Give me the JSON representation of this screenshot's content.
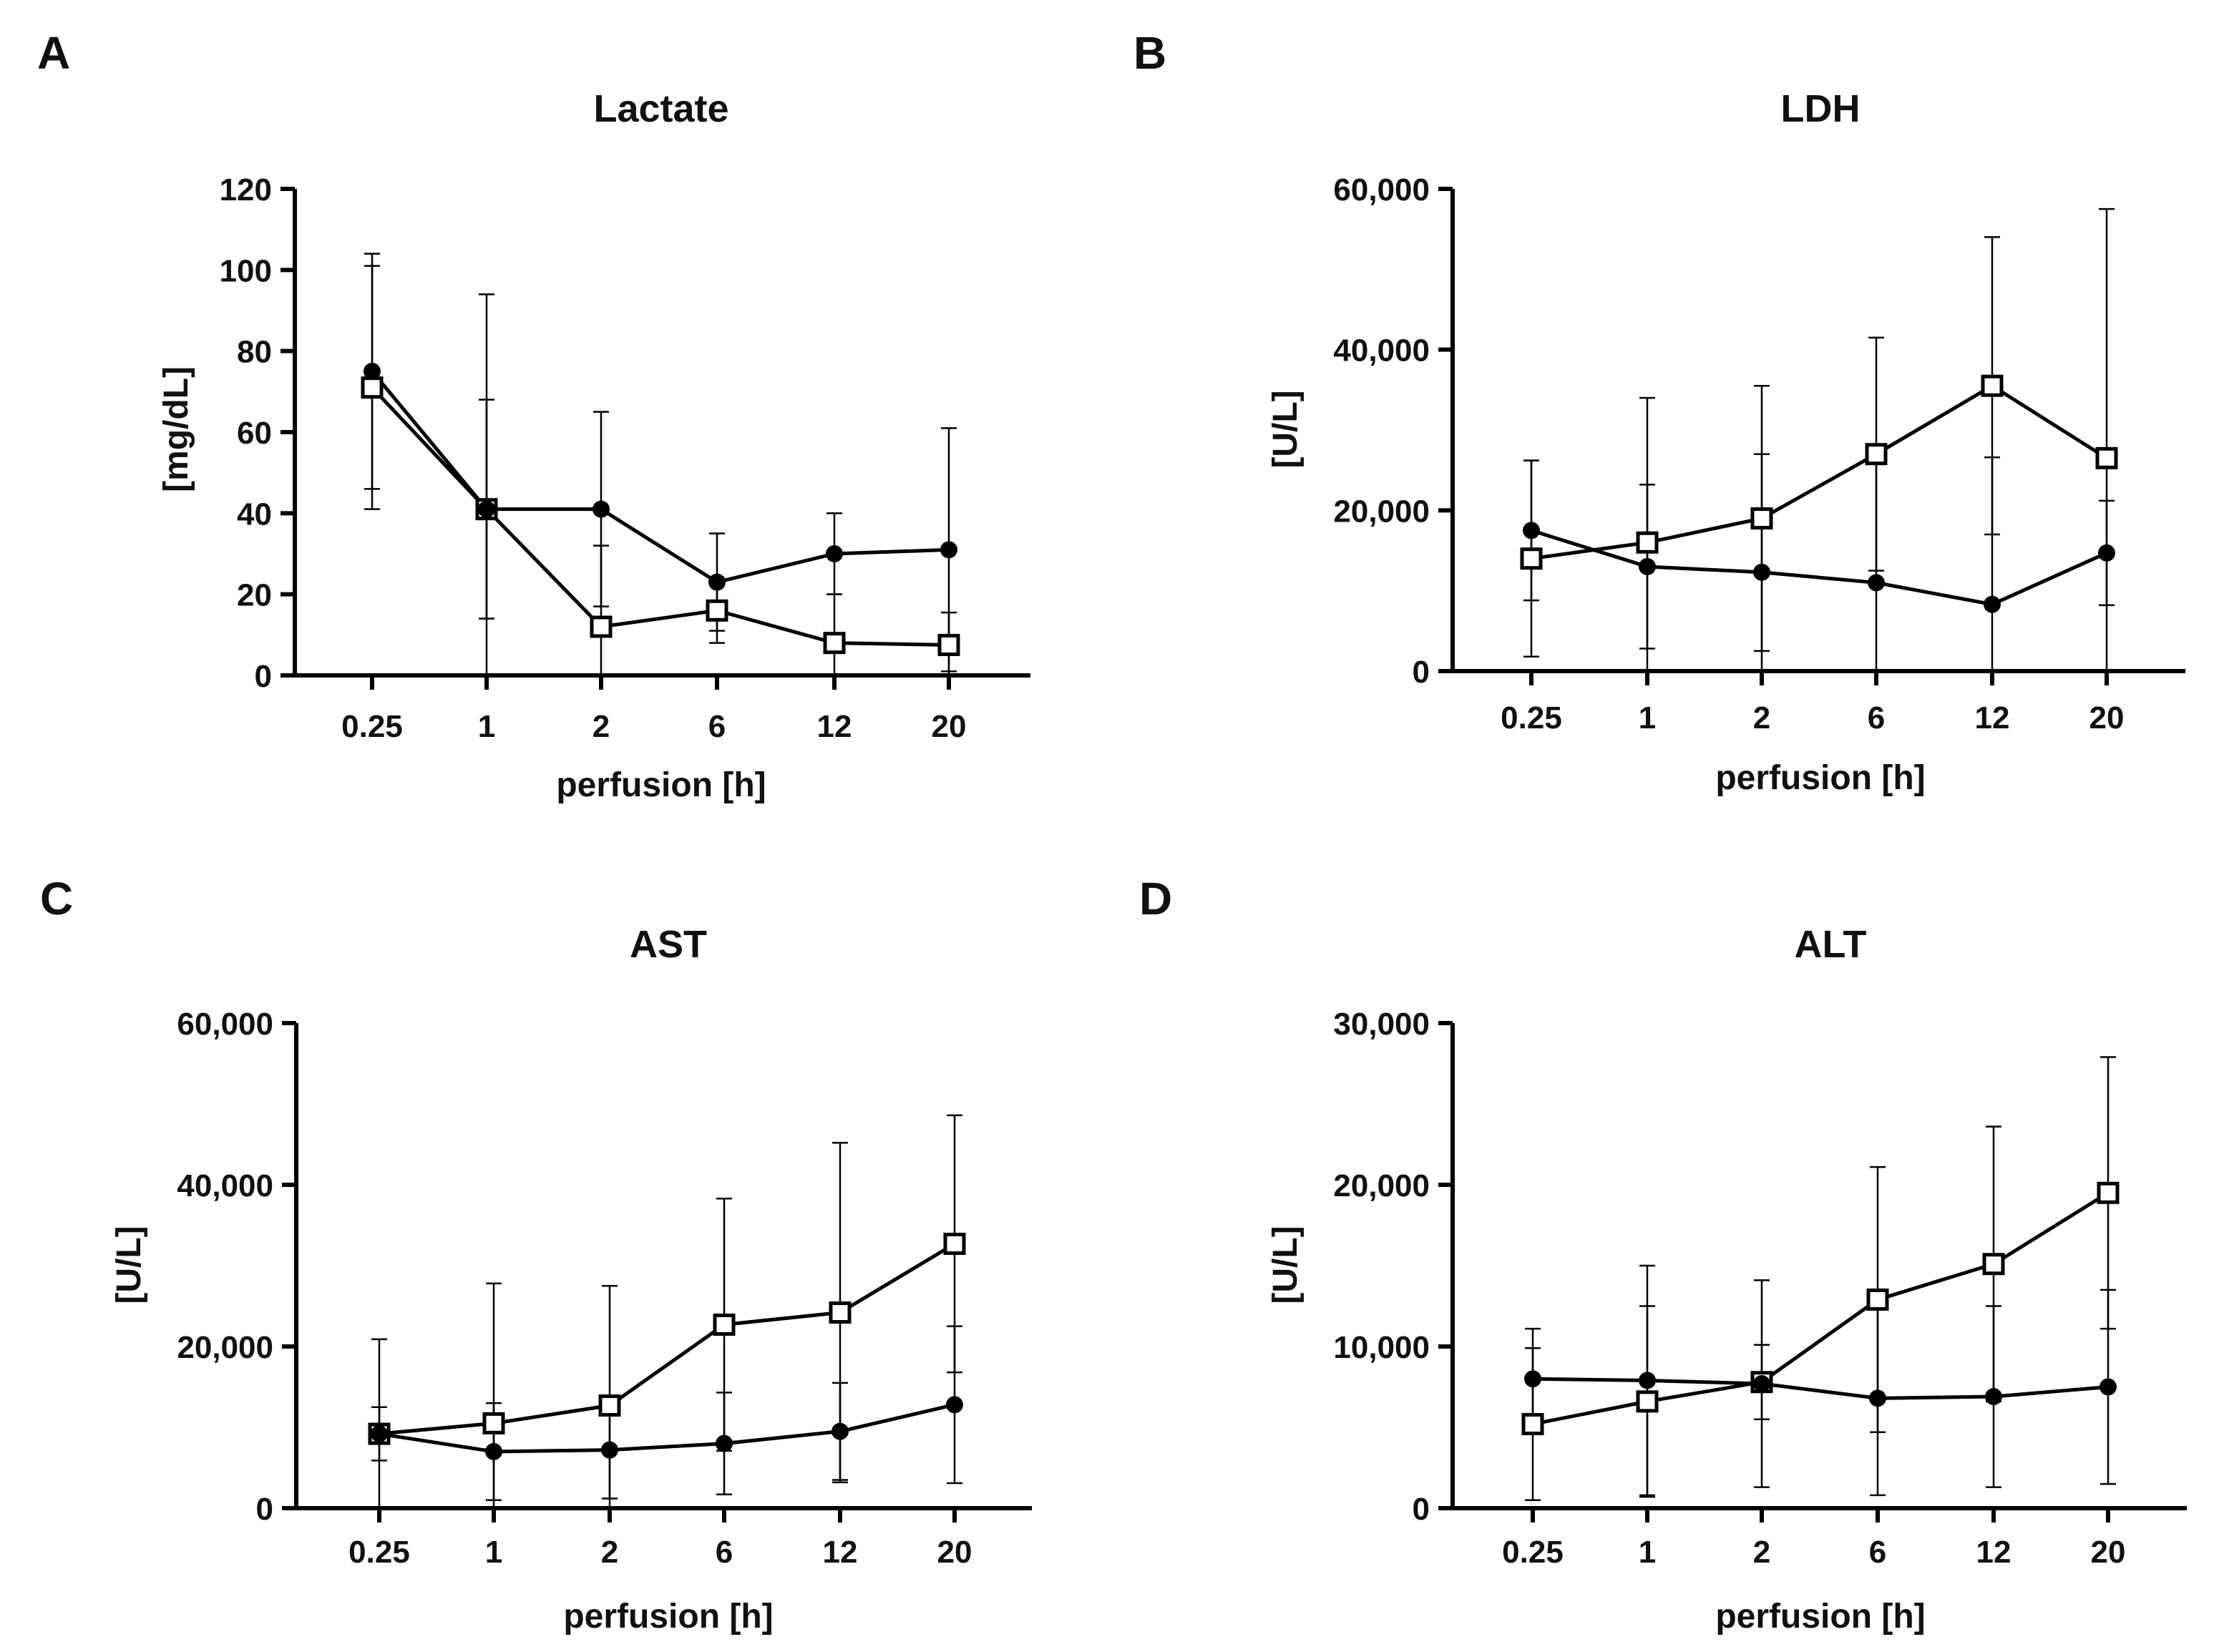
{
  "chart_data": [
    {
      "panel_letter": "A",
      "type": "line",
      "title": "Lactate",
      "xlabel": "perfusion [h]",
      "ylabel": "[mg/dL]",
      "categories": [
        "0.25",
        "1",
        "2",
        "6",
        "12",
        "20"
      ],
      "ylim": [
        0,
        120
      ],
      "yticks": [
        0,
        20,
        40,
        60,
        80,
        100,
        120
      ],
      "ytick_labels": [
        "0",
        "20",
        "40",
        "60",
        "80",
        "100",
        "120"
      ],
      "grid": false,
      "legend": "none",
      "series": [
        {
          "marker": "filled-circle",
          "values": [
            75,
            41,
            41,
            23,
            30,
            31
          ],
          "errors": [
            29,
            53,
            24,
            12,
            10,
            30
          ]
        },
        {
          "marker": "open-square",
          "values": [
            71,
            41,
            12,
            16,
            8,
            7.5
          ],
          "errors": [
            30,
            27,
            20,
            8,
            12,
            8
          ]
        }
      ]
    },
    {
      "panel_letter": "B",
      "type": "line",
      "title": "LDH",
      "xlabel": "perfusion [h]",
      "ylabel": "[U/L]",
      "categories": [
        "0.25",
        "1",
        "2",
        "6",
        "12",
        "20"
      ],
      "ylim": [
        0,
        60000
      ],
      "yticks": [
        0,
        20000,
        40000,
        60000
      ],
      "ytick_labels": [
        "0",
        "20,000",
        "40,000",
        "60,000"
      ],
      "grid": false,
      "legend": "none",
      "series": [
        {
          "marker": "filled-circle",
          "values": [
            17500,
            13000,
            12300,
            11000,
            8300,
            14700
          ],
          "errors": [
            8700,
            10200,
            14700,
            15400,
            18300,
            6500
          ]
        },
        {
          "marker": "open-square",
          "values": [
            14000,
            16000,
            19000,
            27000,
            35500,
            26500
          ],
          "errors": [
            12200,
            18000,
            16500,
            14500,
            18500,
            31000
          ]
        }
      ]
    },
    {
      "panel_letter": "C",
      "type": "line",
      "title": "AST",
      "xlabel": "perfusion [h]",
      "ylabel": "[U/L]",
      "categories": [
        "0.25",
        "1",
        "2",
        "6",
        "12",
        "20"
      ],
      "ylim": [
        0,
        60000
      ],
      "yticks": [
        0,
        20000,
        40000,
        60000
      ],
      "ytick_labels": [
        "0",
        "20,000",
        "40,000",
        "60,000"
      ],
      "grid": false,
      "legend": "none",
      "series": [
        {
          "marker": "filled-circle",
          "values": [
            9200,
            7000,
            7200,
            8000,
            9500,
            12800
          ],
          "errors": [
            3300,
            6000,
            6000,
            6300,
            6000,
            9700
          ]
        },
        {
          "marker": "open-square",
          "values": [
            9200,
            10500,
            12700,
            22700,
            24200,
            32700
          ],
          "errors": [
            11700,
            17300,
            14800,
            15600,
            21000,
            15900
          ]
        }
      ]
    },
    {
      "panel_letter": "D",
      "type": "line",
      "title": "ALT",
      "xlabel": "perfusion [h]",
      "ylabel": "[U/L]",
      "categories": [
        "0.25",
        "1",
        "2",
        "6",
        "12",
        "20"
      ],
      "ylim": [
        0,
        30000
      ],
      "yticks": [
        0,
        10000,
        20000,
        30000
      ],
      "ytick_labels": [
        "0",
        "10,000",
        "20,000",
        "30,000"
      ],
      "grid": false,
      "legend": "none",
      "series": [
        {
          "marker": "filled-circle",
          "values": [
            8000,
            7900,
            7700,
            6800,
            6900,
            7500
          ],
          "errors": [
            3100,
            7100,
            6400,
            6000,
            5600,
            6000
          ]
        },
        {
          "marker": "open-square",
          "values": [
            5200,
            6600,
            7800,
            12900,
            15100,
            19500
          ],
          "errors": [
            4700,
            5900,
            2300,
            8200,
            8500,
            8400
          ]
        }
      ]
    }
  ]
}
